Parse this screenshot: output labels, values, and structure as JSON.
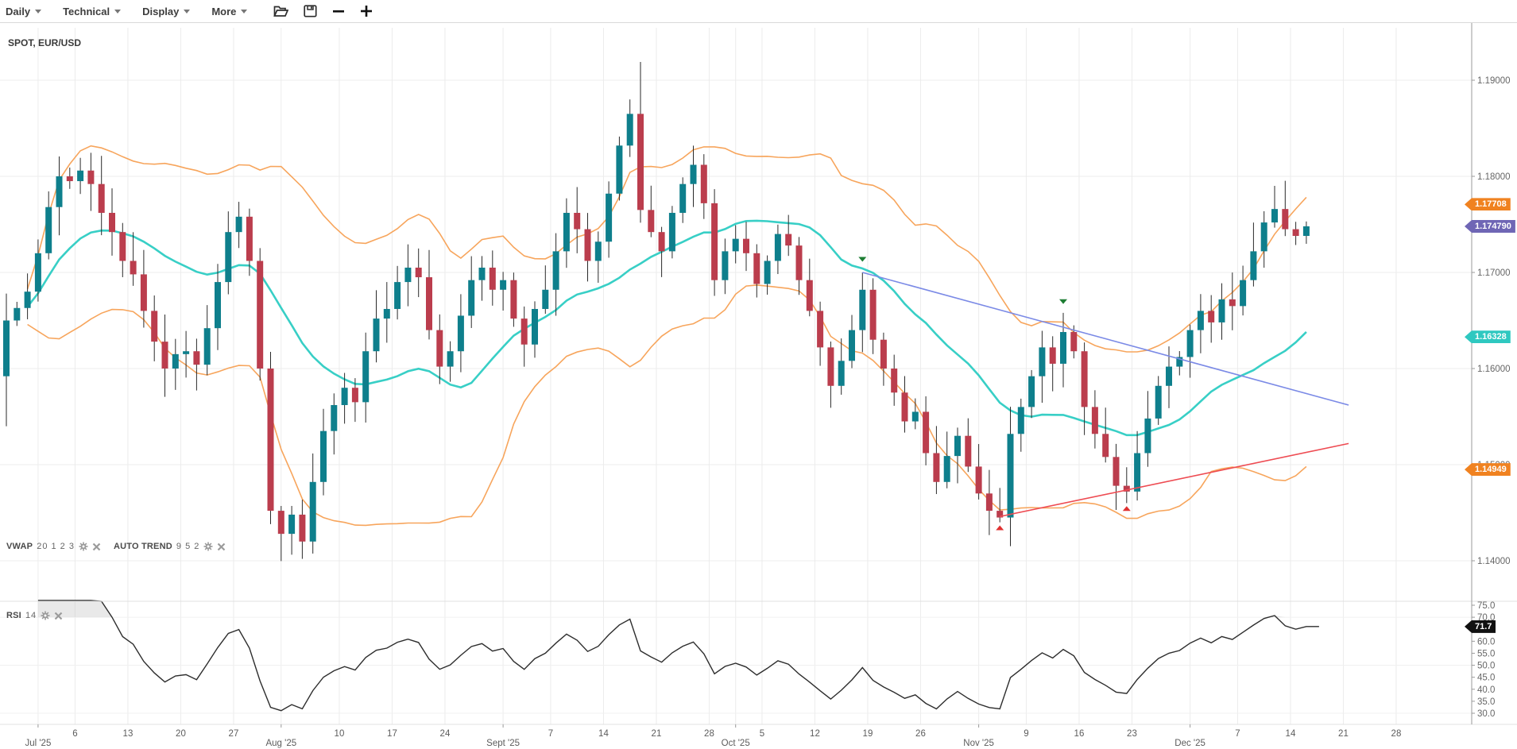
{
  "toolbar": {
    "menus": [
      {
        "label": "Daily"
      },
      {
        "label": "Technical"
      },
      {
        "label": "Display"
      },
      {
        "label": "More"
      }
    ],
    "icons": [
      {
        "name": "open-folder-icon"
      },
      {
        "name": "save-icon"
      },
      {
        "name": "zoom-out-icon"
      },
      {
        "name": "zoom-in-icon"
      }
    ]
  },
  "chart": {
    "symbol_label": "SPOT, EUR/USD",
    "interval": "Daily"
  },
  "indicators": {
    "vwap": {
      "name": "VWAP",
      "params": "20 1 2 3"
    },
    "autotrend": {
      "name": "AUTO TREND",
      "params": "9 5 2"
    },
    "rsi": {
      "name": "RSI",
      "params": "14"
    }
  },
  "colors": {
    "candle_up": "#0e7f8c",
    "candle_down": "#bb3d4d",
    "wick": "#2a2a2a",
    "band": "#f7a55c",
    "vwap_mid": "#38cfc6",
    "trend_blue": "#7b8ae6",
    "trend_red": "#ee4b52",
    "rsi_line": "#2d2d2d",
    "badge_orange": "#f08220",
    "badge_purple": "#6f66b5",
    "badge_cyan": "#2fc8c0",
    "badge_black": "#111111",
    "grid": "#ececec",
    "axis_text": "#666666",
    "marker_green": "#1d7d33",
    "marker_red": "#e03131"
  },
  "price_axis": {
    "ticks": [
      {
        "label": "1.19000",
        "p": 1.19
      },
      {
        "label": "1.18000",
        "p": 1.18
      },
      {
        "label": "1.17000",
        "p": 1.17
      },
      {
        "label": "1.16000",
        "p": 1.16
      },
      {
        "label": "1.15000",
        "p": 1.15
      },
      {
        "label": "1.14000",
        "p": 1.14
      }
    ],
    "badges": [
      {
        "text": "1.17708",
        "p": 1.17708,
        "color_key": "badge_orange",
        "name": "price-badge-upper-band"
      },
      {
        "text": "1.174790",
        "p": 1.17479,
        "color_key": "badge_purple",
        "name": "price-badge-last-price"
      },
      {
        "text": "1.16328",
        "p": 1.16328,
        "color_key": "badge_cyan",
        "name": "price-badge-vwap"
      },
      {
        "text": "1.14949",
        "p": 1.14949,
        "color_key": "badge_orange",
        "name": "price-badge-lower-band"
      }
    ]
  },
  "rsi_axis": {
    "ticks": [
      75.0,
      70.0,
      65.0,
      60.0,
      55.0,
      50.0,
      45.0,
      40.0,
      35.0,
      30.0
    ],
    "badge": {
      "text": "71.7",
      "color_key": "badge_black",
      "name": "rsi-badge-last-value"
    }
  },
  "x_axis": {
    "ticks": [
      {
        "label": "Jul '25",
        "di": 3,
        "month": true
      },
      {
        "label": "6",
        "di": 6.5
      },
      {
        "label": "13",
        "di": 11.5
      },
      {
        "label": "20",
        "di": 16.5
      },
      {
        "label": "27",
        "di": 21.5
      },
      {
        "label": "Aug '25",
        "di": 26,
        "month": true
      },
      {
        "label": "10",
        "di": 31.5
      },
      {
        "label": "17",
        "di": 36.5
      },
      {
        "label": "24",
        "di": 41.5
      },
      {
        "label": "Sept '25",
        "di": 47,
        "month": true
      },
      {
        "label": "7",
        "di": 51.5
      },
      {
        "label": "14",
        "di": 56.5
      },
      {
        "label": "21",
        "di": 61.5
      },
      {
        "label": "28",
        "di": 66.5
      },
      {
        "label": "Oct '25",
        "di": 69,
        "month": true
      },
      {
        "label": "5",
        "di": 71.5
      },
      {
        "label": "12",
        "di": 76.5
      },
      {
        "label": "19",
        "di": 81.5
      },
      {
        "label": "26",
        "di": 86.5
      },
      {
        "label": "Nov '25",
        "di": 92,
        "month": true
      },
      {
        "label": "9",
        "di": 96.5
      },
      {
        "label": "16",
        "di": 101.5
      },
      {
        "label": "23",
        "di": 106.5
      },
      {
        "label": "Dec '25",
        "di": 112,
        "month": true
      },
      {
        "label": "7",
        "di": 116.5
      },
      {
        "label": "14",
        "di": 121.5
      },
      {
        "label": "21",
        "di": 126.5
      },
      {
        "label": "28",
        "di": 131.5
      }
    ]
  },
  "chart_data": {
    "type": "candlestick",
    "title": "SPOT, EUR/USD",
    "interval": "Daily",
    "start_date": "2025-06-26",
    "end_date": "2025-12-16",
    "ylim": [
      1.1358,
      1.196
    ],
    "price_gridlines": [
      1.19,
      1.18,
      1.17,
      1.16,
      1.15,
      1.14
    ],
    "closes": [
      1.165,
      1.1663,
      1.168,
      1.172,
      1.1768,
      1.18,
      1.1795,
      1.1806,
      1.1792,
      1.1762,
      1.1742,
      1.1712,
      1.1698,
      1.166,
      1.1628,
      1.16,
      1.1615,
      1.1618,
      1.1604,
      1.1642,
      1.169,
      1.1742,
      1.1758,
      1.1712,
      1.16,
      1.1452,
      1.1428,
      1.1448,
      1.142,
      1.1482,
      1.1535,
      1.1562,
      1.158,
      1.1565,
      1.1618,
      1.1652,
      1.1662,
      1.169,
      1.1705,
      1.1695,
      1.164,
      1.1602,
      1.1618,
      1.1655,
      1.1692,
      1.1705,
      1.1682,
      1.1692,
      1.1652,
      1.1625,
      1.1662,
      1.1682,
      1.1722,
      1.1762,
      1.1745,
      1.1712,
      1.1732,
      1.1782,
      1.1832,
      1.1865,
      1.1765,
      1.1742,
      1.1722,
      1.1762,
      1.1792,
      1.1812,
      1.1772,
      1.1692,
      1.1722,
      1.1735,
      1.172,
      1.1688,
      1.1712,
      1.174,
      1.1728,
      1.1692,
      1.166,
      1.1622,
      1.1582,
      1.1608,
      1.164,
      1.1682,
      1.163,
      1.16,
      1.1575,
      1.1545,
      1.1555,
      1.1512,
      1.1482,
      1.1509,
      1.153,
      1.1498,
      1.147,
      1.1452,
      1.1445,
      1.1532,
      1.156,
      1.1592,
      1.1622,
      1.1605,
      1.1638,
      1.1618,
      1.156,
      1.1532,
      1.1508,
      1.1478,
      1.1472,
      1.1512,
      1.1548,
      1.1582,
      1.1602,
      1.1612,
      1.164,
      1.166,
      1.1648,
      1.1672,
      1.1665,
      1.1692,
      1.1722,
      1.1752,
      1.1766,
      1.1745,
      1.1738,
      1.1748
    ],
    "open_first": 1.1592,
    "special_wicks": {
      "0": {
        "l": 1.154
      },
      "28": {
        "l": 1.1402
      },
      "59": {
        "h": 1.188
      },
      "60": {
        "h": 1.1919
      },
      "81": {
        "h": 1.17
      },
      "94": {
        "l": 1.144
      },
      "100": {
        "h": 1.1658
      },
      "106": {
        "l": 1.146
      }
    },
    "vwap_band": {
      "period": 20,
      "sigma_mult": 1.5,
      "last_mid": 1.16328,
      "last_upper": 1.17708,
      "last_lower": 1.14949
    },
    "trend_lines": [
      {
        "color_key": "trend_blue",
        "from": {
          "i": 81,
          "p": 1.17
        },
        "to": {
          "i": 127,
          "p": 1.1562
        }
      },
      {
        "color_key": "trend_red",
        "from": {
          "i": 94,
          "p": 1.1446
        },
        "to": {
          "i": 127,
          "p": 1.1522
        }
      }
    ],
    "markers": [
      {
        "dir": "down",
        "color_key": "marker_green",
        "i": 81,
        "p": 1.1712
      },
      {
        "dir": "down",
        "color_key": "marker_green",
        "i": 100,
        "p": 1.1668
      },
      {
        "dir": "up",
        "color_key": "marker_red",
        "i": 94,
        "p": 1.1436
      },
      {
        "dir": "up",
        "color_key": "marker_red",
        "i": 106,
        "p": 1.1456
      }
    ],
    "rsi": {
      "period": 14,
      "last_value": 71.7,
      "overbought": 70,
      "oversold": 30,
      "range": [
        30,
        75
      ]
    }
  }
}
